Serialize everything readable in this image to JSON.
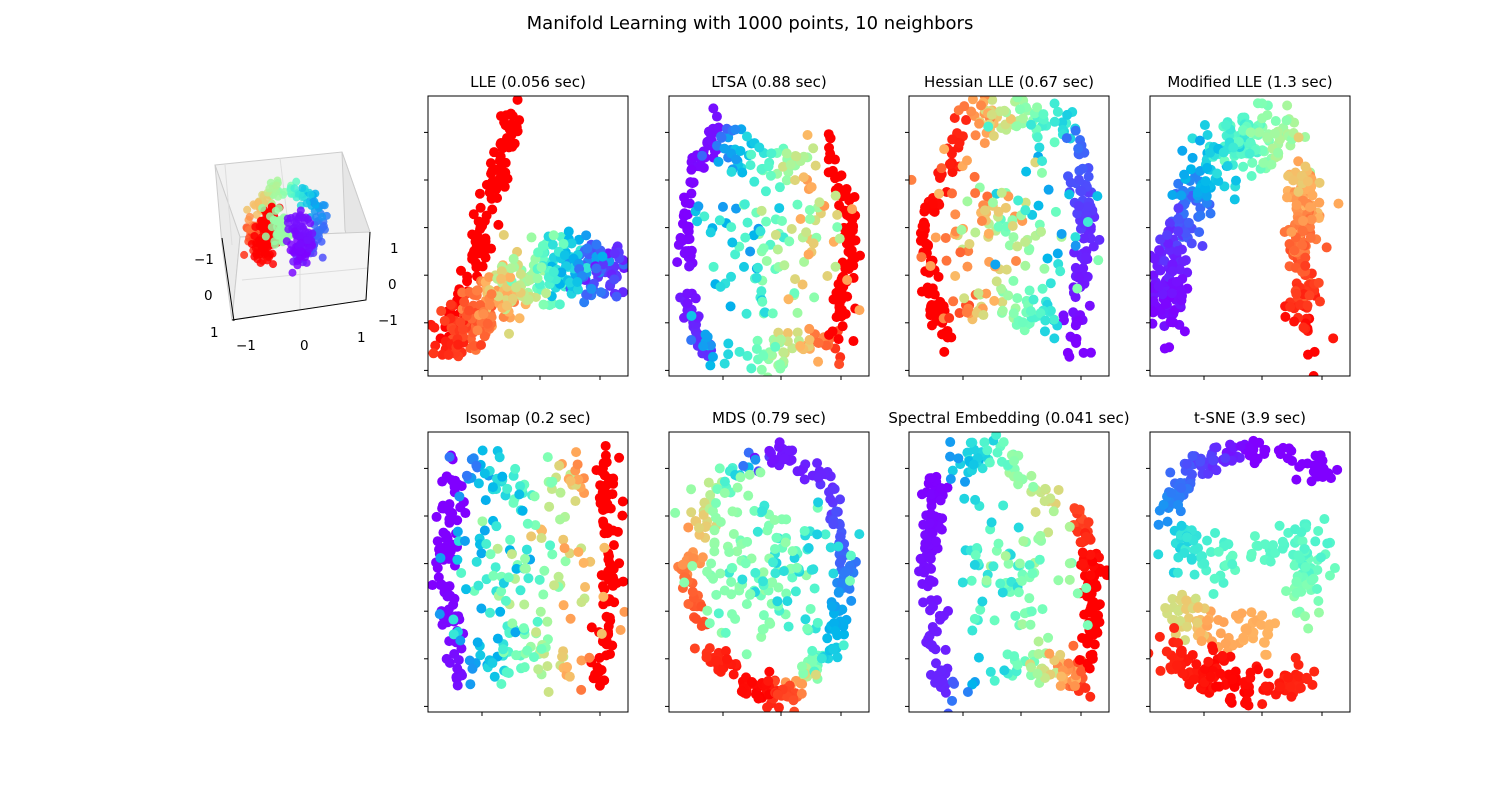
{
  "title": "Manifold Learning with 1000 points, 10 neighbors",
  "colormap": "rainbow",
  "chart_data": [
    {
      "type": "scatter3d",
      "title": "",
      "axis_ticks": {
        "x": [
          "−1",
          "0",
          "1"
        ],
        "y": [
          "1",
          "0",
          "−1"
        ],
        "z": [
          "−1",
          "0",
          "1"
        ]
      },
      "note": "S-curve / severed sphere in 3D, colored by position",
      "segments": [
        {
          "n": 90,
          "s": 0.04,
          "pts": [
            [
              0.48,
              0.88,
              0.5
            ],
            [
              0.3,
              0.82,
              0.65
            ],
            [
              0.17,
              0.6,
              0.8
            ],
            [
              0.2,
              0.35,
              0.95
            ],
            [
              0.32,
              0.22,
              1
            ]
          ]
        },
        {
          "n": 70,
          "s": 0.05,
          "pts": [
            [
              0.33,
              0.7,
              1
            ],
            [
              0.3,
              0.5,
              1
            ],
            [
              0.3,
              0.3,
              1
            ]
          ]
        },
        {
          "n": 40,
          "s": 0.05,
          "pts": [
            [
              0.43,
              0.65,
              0.55
            ],
            [
              0.45,
              0.4,
              0.55
            ]
          ]
        },
        {
          "n": 90,
          "s": 0.04,
          "pts": [
            [
              0.52,
              0.88,
              0.45
            ],
            [
              0.72,
              0.8,
              0.25
            ],
            [
              0.8,
              0.55,
              0.15
            ],
            [
              0.72,
              0.32,
              0.1
            ],
            [
              0.55,
              0.2,
              0.0
            ]
          ]
        },
        {
          "n": 70,
          "s": 0.05,
          "pts": [
            [
              0.58,
              0.65,
              0.02
            ],
            [
              0.62,
              0.45,
              0.02
            ],
            [
              0.6,
              0.28,
              0.0
            ]
          ]
        }
      ]
    },
    {
      "type": "scatter",
      "title": "LLE (0.056 sec)",
      "segments": [
        {
          "n": 110,
          "s": 0.035,
          "pts": [
            [
              0.41,
              0.95,
              1
            ],
            [
              0.35,
              0.7,
              1
            ],
            [
              0.22,
              0.45,
              1
            ],
            [
              0.08,
              0.12,
              1
            ]
          ]
        },
        {
          "n": 360,
          "s": 0.06,
          "pts": [
            [
              0.06,
              0.1,
              0.97
            ],
            [
              0.3,
              0.25,
              0.82
            ],
            [
              0.55,
              0.38,
              0.5
            ],
            [
              0.75,
              0.37,
              0.25
            ],
            [
              0.95,
              0.38,
              0.02
            ]
          ]
        }
      ]
    },
    {
      "type": "scatter",
      "title": "LTSA (0.88 sec)",
      "segments": [
        {
          "n": 90,
          "s": 0.03,
          "pts": [
            [
              0.2,
              0.92,
              0.02
            ],
            [
              0.05,
              0.6,
              0.0
            ],
            [
              0.05,
              0.3,
              0.02
            ],
            [
              0.15,
              0.08,
              0.06
            ]
          ]
        },
        {
          "n": 70,
          "s": 0.04,
          "pts": [
            [
              0.12,
              0.08,
              0.15
            ],
            [
              0.45,
              0.05,
              0.45
            ],
            [
              0.65,
              0.08,
              0.7
            ],
            [
              0.85,
              0.12,
              0.95
            ]
          ]
        },
        {
          "n": 90,
          "s": 0.03,
          "pts": [
            [
              0.8,
              0.86,
              1
            ],
            [
              0.93,
              0.6,
              1
            ],
            [
              0.9,
              0.35,
              1
            ],
            [
              0.88,
              0.12,
              1
            ]
          ]
        },
        {
          "n": 60,
          "s": 0.05,
          "pts": [
            [
              0.2,
              0.88,
              0.12
            ],
            [
              0.5,
              0.75,
              0.4
            ],
            [
              0.75,
              0.8,
              0.75
            ]
          ]
        },
        {
          "n": 110,
          "s": 0.14,
          "pts": [
            [
              0.2,
              0.5,
              0.2
            ],
            [
              0.5,
              0.45,
              0.45
            ],
            [
              0.8,
              0.5,
              0.8
            ]
          ]
        }
      ]
    },
    {
      "type": "scatter",
      "title": "Hessian LLE (0.67 sec)",
      "segments": [
        {
          "n": 90,
          "s": 0.03,
          "pts": [
            [
              0.25,
              0.92,
              0.95
            ],
            [
              0.06,
              0.55,
              1
            ],
            [
              0.1,
              0.25,
              1
            ],
            [
              0.18,
              0.12,
              1
            ]
          ]
        },
        {
          "n": 70,
          "s": 0.04,
          "pts": [
            [
              0.3,
              0.93,
              0.85
            ],
            [
              0.55,
              0.95,
              0.55
            ],
            [
              0.82,
              0.9,
              0.3
            ]
          ]
        },
        {
          "n": 90,
          "s": 0.03,
          "pts": [
            [
              0.86,
              0.88,
              0.15
            ],
            [
              0.92,
              0.5,
              0.05
            ],
            [
              0.84,
              0.06,
              0.0
            ]
          ]
        },
        {
          "n": 60,
          "s": 0.04,
          "pts": [
            [
              0.2,
              0.2,
              0.95
            ],
            [
              0.45,
              0.25,
              0.6
            ],
            [
              0.75,
              0.15,
              0.3
            ]
          ]
        },
        {
          "n": 110,
          "s": 0.14,
          "pts": [
            [
              0.22,
              0.6,
              0.88
            ],
            [
              0.5,
              0.5,
              0.6
            ],
            [
              0.8,
              0.55,
              0.2
            ]
          ]
        }
      ]
    },
    {
      "type": "scatter",
      "title": "Modified LLE (1.3 sec)",
      "segments": [
        {
          "n": 150,
          "s": 0.05,
          "pts": [
            [
              0.06,
              0.18,
              0.0
            ],
            [
              0.08,
              0.45,
              0.05
            ],
            [
              0.22,
              0.68,
              0.18
            ]
          ]
        },
        {
          "n": 160,
          "s": 0.06,
          "pts": [
            [
              0.22,
              0.7,
              0.22
            ],
            [
              0.45,
              0.88,
              0.42
            ],
            [
              0.72,
              0.85,
              0.6
            ]
          ]
        },
        {
          "n": 150,
          "s": 0.05,
          "pts": [
            [
              0.78,
              0.75,
              0.7
            ],
            [
              0.78,
              0.5,
              0.85
            ],
            [
              0.8,
              0.1,
              1
            ]
          ]
        }
      ]
    },
    {
      "type": "scatter",
      "title": "Isomap (0.2 sec)",
      "segments": [
        {
          "n": 90,
          "s": 0.03,
          "pts": [
            [
              0.12,
              0.93,
              0.0
            ],
            [
              0.05,
              0.5,
              0.0
            ],
            [
              0.15,
              0.08,
              0.02
            ]
          ]
        },
        {
          "n": 90,
          "s": 0.03,
          "pts": [
            [
              0.9,
              0.94,
              1
            ],
            [
              0.94,
              0.5,
              1
            ],
            [
              0.88,
              0.08,
              1
            ]
          ]
        },
        {
          "n": 60,
          "s": 0.05,
          "pts": [
            [
              0.18,
              0.88,
              0.15
            ],
            [
              0.5,
              0.8,
              0.45
            ],
            [
              0.82,
              0.88,
              0.85
            ]
          ]
        },
        {
          "n": 60,
          "s": 0.05,
          "pts": [
            [
              0.2,
              0.15,
              0.2
            ],
            [
              0.5,
              0.2,
              0.5
            ],
            [
              0.8,
              0.15,
              0.85
            ]
          ]
        },
        {
          "n": 110,
          "s": 0.14,
          "pts": [
            [
              0.2,
              0.5,
              0.2
            ],
            [
              0.5,
              0.5,
              0.5
            ],
            [
              0.8,
              0.5,
              0.8
            ]
          ]
        }
      ]
    },
    {
      "type": "scatter",
      "title": "MDS (0.79 sec)",
      "segments": [
        {
          "n": 300,
          "s": 0.025,
          "pts": [
            [
              0.5,
              0.95,
              0.02
            ],
            [
              0.8,
              0.85,
              0.05
            ],
            [
              0.93,
              0.5,
              0.15
            ],
            [
              0.82,
              0.2,
              0.3
            ],
            [
              0.6,
              0.05,
              0.9
            ],
            [
              0.45,
              0.04,
              1
            ],
            [
              0.2,
              0.18,
              0.95
            ],
            [
              0.05,
              0.5,
              0.85
            ],
            [
              0.2,
              0.8,
              0.6
            ],
            [
              0.5,
              0.95,
              0.02
            ]
          ]
        },
        {
          "n": 150,
          "s": 0.15,
          "pts": [
            [
              0.3,
              0.6,
              0.55
            ],
            [
              0.5,
              0.45,
              0.5
            ],
            [
              0.7,
              0.6,
              0.3
            ]
          ]
        }
      ]
    },
    {
      "type": "scatter",
      "title": "Spectral Embedding (0.041 sec)",
      "segments": [
        {
          "n": 90,
          "s": 0.03,
          "pts": [
            [
              0.12,
              0.85,
              0.0
            ],
            [
              0.05,
              0.5,
              0.02
            ],
            [
              0.15,
              0.05,
              0.05
            ]
          ]
        },
        {
          "n": 70,
          "s": 0.04,
          "pts": [
            [
              0.15,
              0.05,
              0.1
            ],
            [
              0.5,
              0.15,
              0.4
            ],
            [
              0.75,
              0.15,
              0.7
            ],
            [
              0.9,
              0.1,
              0.95
            ]
          ]
        },
        {
          "n": 90,
          "s": 0.03,
          "pts": [
            [
              0.85,
              0.75,
              0.9
            ],
            [
              0.95,
              0.5,
              1
            ],
            [
              0.92,
              0.15,
              1
            ]
          ]
        },
        {
          "n": 60,
          "s": 0.04,
          "pts": [
            [
              0.2,
              0.9,
              0.2
            ],
            [
              0.4,
              0.98,
              0.4
            ],
            [
              0.75,
              0.75,
              0.7
            ]
          ]
        },
        {
          "n": 80,
          "s": 0.13,
          "pts": [
            [
              0.3,
              0.6,
              0.3
            ],
            [
              0.5,
              0.4,
              0.45
            ],
            [
              0.7,
              0.55,
              0.6
            ]
          ]
        }
      ]
    },
    {
      "type": "scatter",
      "title": "t-SNE (3.9 sec)",
      "segments": [
        {
          "n": 120,
          "s": 0.03,
          "pts": [
            [
              0.05,
              0.72,
              0.2
            ],
            [
              0.2,
              0.9,
              0.1
            ],
            [
              0.5,
              0.95,
              0.0
            ],
            [
              0.95,
              0.88,
              0.0
            ]
          ]
        },
        {
          "n": 130,
          "s": 0.05,
          "pts": [
            [
              0.05,
              0.62,
              0.3
            ],
            [
              0.4,
              0.52,
              0.45
            ],
            [
              0.85,
              0.62,
              0.4
            ],
            [
              0.75,
              0.35,
              0.55
            ]
          ]
        },
        {
          "n": 80,
          "s": 0.04,
          "pts": [
            [
              0.1,
              0.35,
              0.65
            ],
            [
              0.3,
              0.28,
              0.78
            ],
            [
              0.6,
              0.28,
              0.75
            ]
          ]
        },
        {
          "n": 130,
          "s": 0.04,
          "pts": [
            [
              0.06,
              0.2,
              0.95
            ],
            [
              0.4,
              0.07,
              1
            ],
            [
              0.8,
              0.12,
              0.95
            ]
          ]
        }
      ]
    }
  ]
}
